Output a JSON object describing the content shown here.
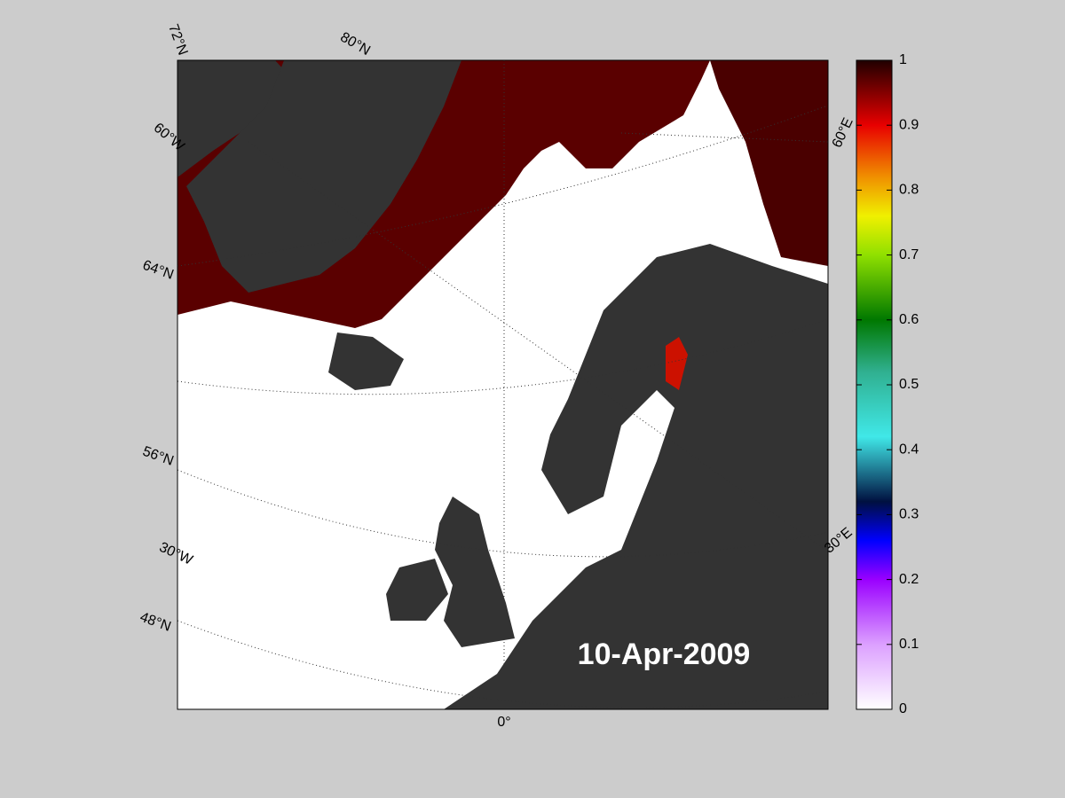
{
  "map": {
    "labels": [
      "72°N",
      "80°N",
      "60°W",
      "64°N",
      "56°N",
      "30°W",
      "48°N",
      "0°",
      "60°E",
      "30°E"
    ],
    "date": "10-Apr-2009"
  },
  "colorbar": {
    "lim": [
      0,
      1
    ],
    "ticks": [
      0,
      0.1,
      0.2,
      0.3,
      0.4,
      0.5,
      0.6,
      0.7,
      0.8,
      0.9,
      1
    ]
  }
}
